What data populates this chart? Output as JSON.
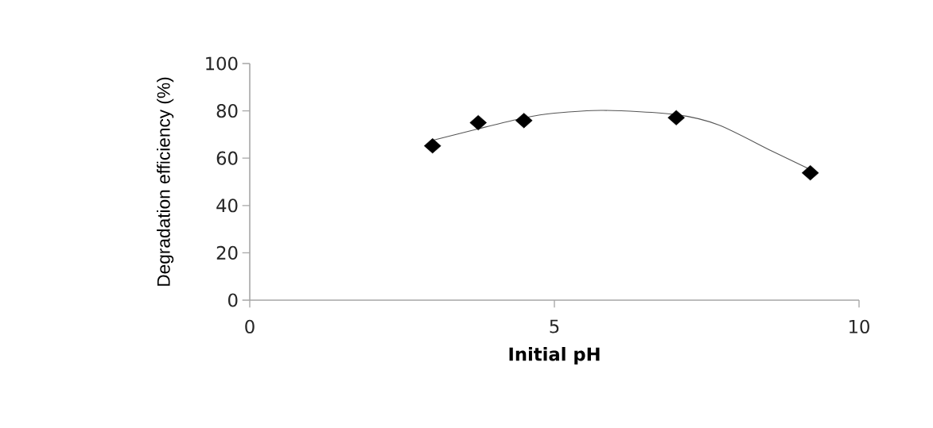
{
  "chart_data": {
    "type": "scatter",
    "xlabel": "Initial pH",
    "ylabel": "Degradation efficiency (%)",
    "xlim": [
      0,
      10
    ],
    "ylim": [
      0,
      100
    ],
    "xticks": [
      0,
      5,
      10
    ],
    "yticks": [
      0,
      20,
      40,
      60,
      80,
      100
    ],
    "grid": false,
    "marker": "diamond",
    "series": [
      {
        "color": "#000000",
        "x": [
          3,
          3.75,
          4.5,
          7,
          9.2
        ],
        "values": [
          65.2,
          75.0,
          75.9,
          77.1,
          53.8
        ]
      },
      {
        "type": "line",
        "color": "#555555",
        "marker": "none",
        "line_style": "solid",
        "x": [
          3,
          3.75,
          4.5,
          5,
          5.8,
          7,
          7.7,
          8.57,
          9.2
        ],
        "values": [
          67.5,
          72.4,
          77,
          79,
          80.2,
          78.4,
          74,
          63,
          55.2
        ]
      }
    ]
  }
}
